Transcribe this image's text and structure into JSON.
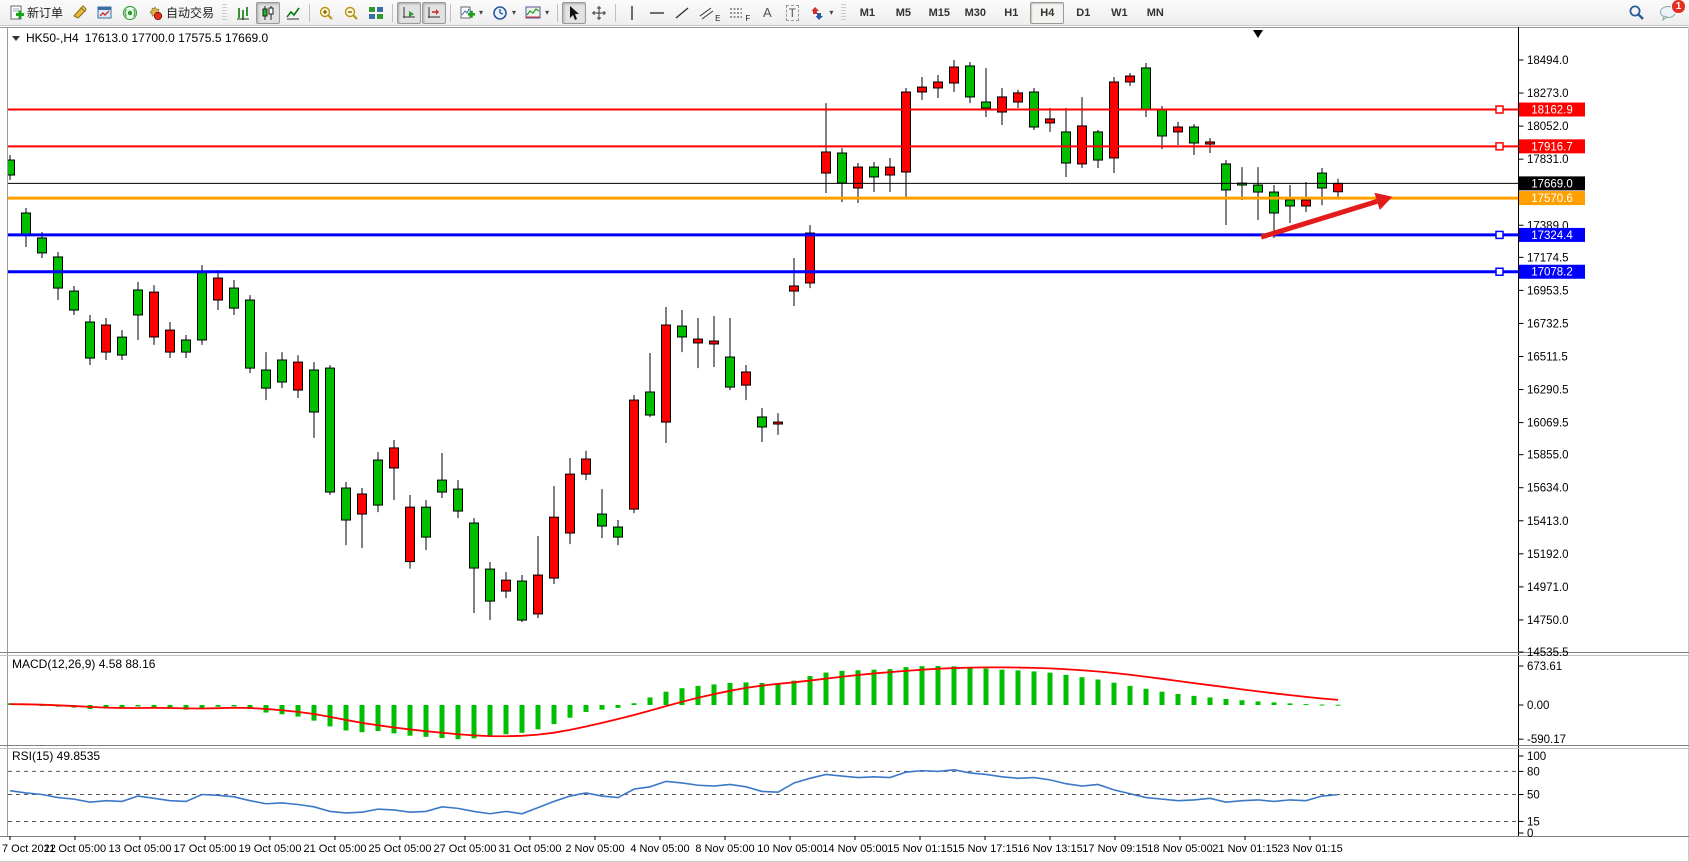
{
  "toolbar": {
    "new_order_label": "新订单",
    "auto_trading_label": "自动交易",
    "glyphs": {
      "channel_letter": "E",
      "fibonacci_letter": "F",
      "text_tool": "A",
      "label_tool": "T"
    },
    "timeframes": [
      "M1",
      "M5",
      "M15",
      "M30",
      "H1",
      "H4",
      "D1",
      "W1",
      "MN"
    ],
    "active_timeframe": "H4",
    "notification_count": "1"
  },
  "chart": {
    "symbol": "HK50-,H4",
    "ohlc": "17613.0 17700.0 17575.5 17669.0"
  },
  "indicators": {
    "macd_label": "MACD(12,26,9) 4.58 88.16",
    "rsi_label": "RSI(15) 49.8535"
  },
  "price_axis": {
    "ticks": [
      "18494.0",
      "18273.0",
      "18052.0",
      "17831.0",
      "17389.0",
      "17174.5",
      "16953.5",
      "16732.5",
      "16511.5",
      "16290.5",
      "16069.5",
      "15855.0",
      "15634.0",
      "15413.0",
      "15192.0",
      "14971.0",
      "14750.0",
      "14535.5"
    ]
  },
  "macd_axis": {
    "ticks": [
      "673.61",
      "0.00",
      "-590.17"
    ]
  },
  "rsi_axis": {
    "ticks": [
      "100",
      "80",
      "50",
      "15",
      "0"
    ],
    "dashed_levels": [
      80,
      50,
      15
    ]
  },
  "time_axis": {
    "labels": [
      "7 Oct 2022",
      "11 Oct 05:00",
      "13 Oct 05:00",
      "17 Oct 05:00",
      "19 Oct 05:00",
      "21 Oct 05:00",
      "25 Oct 05:00",
      "27 Oct 05:00",
      "31 Oct 05:00",
      "2 Nov 05:00",
      "4 Nov 05:00",
      "8 Nov 05:00",
      "10 Nov 05:00",
      "14 Nov 05:00",
      "15 Nov 01:15",
      "15 Nov 17:15",
      "16 Nov 13:15",
      "17 Nov 09:15",
      "18 Nov 05:00",
      "21 Nov 01:15",
      "23 Nov 01:15"
    ]
  },
  "hlines": [
    {
      "price": 18162.9,
      "label": "18162.9",
      "color": "#FF0000",
      "width": 2,
      "anchor": true
    },
    {
      "price": 17916.7,
      "label": "17916.7",
      "color": "#FF0000",
      "width": 2,
      "anchor": true
    },
    {
      "price": 17669.0,
      "label": "17669.0",
      "color": "#000000",
      "width": 1,
      "anchor": false
    },
    {
      "price": 17570.6,
      "label": "17570.6",
      "color": "#FFA000",
      "width": 3,
      "anchor": false
    },
    {
      "price": 17324.4,
      "label": "17324.4",
      "color": "#0000FF",
      "width": 3,
      "anchor": true
    },
    {
      "price": 17078.2,
      "label": "17078.2",
      "color": "#0000FF",
      "width": 3,
      "anchor": true
    }
  ],
  "annotations": {
    "trend_arrow": {
      "color": "#E21B1B",
      "from_candle": 78.2,
      "from_price": 17310,
      "to_candle": 86.4,
      "to_price": 17580
    }
  },
  "chart_data": [
    {
      "type": "candlestick",
      "title": "HK50-,H4 17613.0 17700.0 17575.5 17669.0",
      "convention": "red = bullish (close>open), green = bearish",
      "up_color": "#FF0000",
      "down_color": "#00BE00",
      "ylim": [
        14535.5,
        18494.0
      ],
      "ohlc": [
        [
          17825,
          17859,
          17692,
          17725
        ],
        [
          17471,
          17504,
          17244,
          17324
        ],
        [
          17304,
          17344,
          17170,
          17204
        ],
        [
          17177,
          17210,
          16889,
          16969
        ],
        [
          16949,
          16983,
          16789,
          16822
        ],
        [
          16742,
          16789,
          16455,
          16501
        ],
        [
          16541,
          16769,
          16488,
          16722
        ],
        [
          16641,
          16688,
          16488,
          16521
        ],
        [
          16956,
          17010,
          16622,
          16789
        ],
        [
          16642,
          16989,
          16589,
          16942
        ],
        [
          16541,
          16742,
          16501,
          16688
        ],
        [
          16622,
          16655,
          16501,
          16541
        ],
        [
          17076,
          17123,
          16589,
          16622
        ],
        [
          16889,
          17090,
          16822,
          17036
        ],
        [
          16969,
          17023,
          16789,
          16835
        ],
        [
          16889,
          16922,
          16401,
          16434
        ],
        [
          16421,
          16541,
          16220,
          16300
        ],
        [
          16488,
          16541,
          16300,
          16341
        ],
        [
          16287,
          16521,
          16234,
          16474
        ],
        [
          16421,
          16474,
          15967,
          16140
        ],
        [
          16434,
          16454,
          15585,
          15605
        ],
        [
          15632,
          15672,
          15250,
          15418
        ],
        [
          15458,
          15632,
          15230,
          15592
        ],
        [
          15819,
          15872,
          15471,
          15518
        ],
        [
          15766,
          15953,
          15551,
          15900
        ],
        [
          15140,
          15585,
          15093,
          15504
        ],
        [
          15504,
          15551,
          15217,
          15304
        ],
        [
          15685,
          15866,
          15565,
          15605
        ],
        [
          15625,
          15685,
          15431,
          15478
        ],
        [
          15398,
          15431,
          14796,
          15097
        ],
        [
          15090,
          15137,
          14749,
          14876
        ],
        [
          14943,
          15070,
          14896,
          15016
        ],
        [
          15010,
          15050,
          14736,
          14749
        ],
        [
          14790,
          15311,
          14762,
          15050
        ],
        [
          15030,
          15645,
          14990,
          15437
        ],
        [
          15331,
          15833,
          15257,
          15725
        ],
        [
          15725,
          15880,
          15685,
          15826
        ],
        [
          15458,
          15625,
          15297,
          15378
        ],
        [
          15371,
          15418,
          15250,
          15304
        ],
        [
          15491,
          16254,
          15464,
          16220
        ],
        [
          16274,
          16535,
          16106,
          16120
        ],
        [
          16073,
          16842,
          15933,
          16722
        ],
        [
          16715,
          16822,
          16541,
          16642
        ],
        [
          16602,
          16769,
          16434,
          16628
        ],
        [
          16595,
          16782,
          16441,
          16615
        ],
        [
          16508,
          16769,
          16287,
          16307
        ],
        [
          16320,
          16455,
          16220,
          16408
        ],
        [
          16107,
          16167,
          15940,
          16040
        ],
        [
          16060,
          16133,
          15987,
          16073
        ],
        [
          16949,
          17170,
          16849,
          16983
        ],
        [
          17003,
          17390,
          16969,
          17337
        ],
        [
          17738,
          18206,
          17605,
          17879
        ],
        [
          17872,
          17905,
          17544,
          17671
        ],
        [
          17638,
          17805,
          17538,
          17778
        ],
        [
          17778,
          17812,
          17611,
          17712
        ],
        [
          17725,
          17839,
          17611,
          17778
        ],
        [
          17745,
          18307,
          17578,
          18280
        ],
        [
          18280,
          18380,
          18227,
          18313
        ],
        [
          18307,
          18394,
          18240,
          18347
        ],
        [
          18340,
          18494,
          18280,
          18447
        ],
        [
          18454,
          18481,
          18206,
          18247
        ],
        [
          18213,
          18440,
          18113,
          18173
        ],
        [
          18146,
          18307,
          18059,
          18247
        ],
        [
          18213,
          18294,
          18173,
          18274
        ],
        [
          18280,
          18307,
          18026,
          18046
        ],
        [
          18073,
          18173,
          18013,
          18100
        ],
        [
          18013,
          18173,
          17712,
          17805
        ],
        [
          17799,
          18246,
          17772,
          18053
        ],
        [
          18013,
          18026,
          17772,
          17825
        ],
        [
          17839,
          18380,
          17738,
          18347
        ],
        [
          18347,
          18407,
          18320,
          18387
        ],
        [
          18441,
          18474,
          18113,
          18166
        ],
        [
          18160,
          18186,
          17899,
          17986
        ],
        [
          18013,
          18080,
          17926,
          18046
        ],
        [
          18046,
          18066,
          17859,
          17939
        ],
        [
          17932,
          17972,
          17872,
          17946
        ],
        [
          17799,
          17825,
          17391,
          17625
        ],
        [
          17671,
          17778,
          17558,
          17658
        ],
        [
          17658,
          17778,
          17424,
          17611
        ],
        [
          17611,
          17658,
          17304,
          17471
        ],
        [
          17558,
          17658,
          17404,
          17518
        ],
        [
          17518,
          17678,
          17477,
          17558
        ],
        [
          17738,
          17772,
          17524,
          17638
        ],
        [
          17613,
          17700,
          17575.5,
          17669
        ]
      ]
    },
    {
      "type": "bar",
      "name": "MACD(12,26,9)",
      "current_values": "4.58 88.16",
      "bar_color": "#00BE00",
      "signal_color": "#FF0000",
      "ylim": [
        -590.17,
        673.61
      ],
      "values": [
        30,
        15,
        -5,
        -30,
        -45,
        -70,
        -60,
        -45,
        -25,
        -35,
        -60,
        -80,
        -55,
        -30,
        -25,
        -70,
        -130,
        -160,
        -200,
        -270,
        -370,
        -440,
        -470,
        -450,
        -490,
        -530,
        -550,
        -570,
        -590,
        -575,
        -545,
        -505,
        -480,
        -420,
        -330,
        -220,
        -120,
        -80,
        -50,
        30,
        130,
        230,
        290,
        330,
        355,
        380,
        390,
        380,
        360,
        420,
        500,
        560,
        590,
        600,
        610,
        620,
        655,
        670,
        673,
        668,
        650,
        630,
        610,
        598,
        580,
        558,
        520,
        480,
        440,
        385,
        330,
        280,
        230,
        190,
        158,
        130,
        103,
        82,
        62,
        45,
        28,
        16,
        8,
        5
      ],
      "signal": [
        15,
        12,
        5,
        -5,
        -18,
        -32,
        -45,
        -52,
        -52,
        -50,
        -52,
        -58,
        -60,
        -55,
        -48,
        -52,
        -68,
        -90,
        -118,
        -155,
        -205,
        -258,
        -308,
        -350,
        -388,
        -422,
        -452,
        -480,
        -505,
        -525,
        -538,
        -540,
        -532,
        -512,
        -478,
        -430,
        -372,
        -308,
        -242,
        -172,
        -98,
        -20,
        55,
        125,
        188,
        245,
        295,
        335,
        365,
        392,
        422,
        455,
        488,
        518,
        545,
        568,
        590,
        610,
        626,
        638,
        646,
        650,
        650,
        647,
        641,
        632,
        618,
        600,
        578,
        552,
        522,
        488,
        452,
        415,
        378,
        342,
        306,
        270,
        235,
        202,
        170,
        140,
        112,
        88
      ]
    },
    {
      "type": "line",
      "name": "RSI(15)",
      "current_value": 49.8535,
      "line_color": "#3C78C8",
      "ylim": [
        0,
        100
      ],
      "values": [
        55,
        52,
        50,
        46,
        44,
        40,
        42,
        41,
        48,
        45,
        42,
        41,
        50,
        49,
        47,
        42,
        38,
        39,
        37,
        34,
        28,
        26,
        27,
        31,
        30,
        27,
        28,
        34,
        32,
        28,
        25,
        28,
        25,
        33,
        41,
        48,
        52,
        48,
        46,
        57,
        60,
        67,
        65,
        62,
        61,
        63,
        60,
        54,
        53,
        65,
        71,
        76,
        74,
        72,
        73,
        72,
        79,
        81,
        80,
        82,
        78,
        76,
        73,
        71,
        72,
        69,
        64,
        61,
        63,
        56,
        51,
        46,
        44,
        42,
        43,
        45,
        40,
        42,
        43,
        41,
        43,
        42,
        48,
        49.85
      ]
    }
  ]
}
